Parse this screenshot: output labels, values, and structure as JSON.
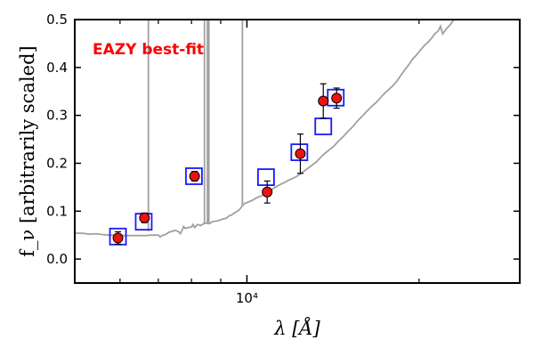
{
  "chart_data": {
    "type": "scatter",
    "title": "",
    "xlabel": "λ [Å]",
    "ylabel": "f_ν [arbitrarily scaled]",
    "xscale": "log",
    "xlim": [
      5000,
      30000
    ],
    "ylim": [
      -0.05,
      0.5
    ],
    "x_major_ticks": [
      {
        "value": 10000,
        "label": "10⁴"
      }
    ],
    "x_minor_ticks": [
      6000,
      7000,
      8000,
      9000,
      20000
    ],
    "y_ticks": [
      {
        "value": 0.0,
        "label": "0.0"
      },
      {
        "value": 0.1,
        "label": "0.1"
      },
      {
        "value": 0.2,
        "label": "0.2"
      },
      {
        "value": 0.3,
        "label": "0.3"
      },
      {
        "value": 0.4,
        "label": "0.4"
      },
      {
        "value": 0.5,
        "label": "0.5"
      }
    ],
    "annotation": {
      "text": "EAZY best-fit",
      "color": "#ff0000"
    },
    "series": [
      {
        "kind": "line",
        "color": "#a0a0a0",
        "points": [
          [
            5000,
            0.054
          ],
          [
            5150,
            0.054
          ],
          [
            5300,
            0.052
          ],
          [
            5450,
            0.053
          ],
          [
            5600,
            0.051
          ],
          [
            5750,
            0.05
          ],
          [
            5900,
            0.05
          ],
          [
            6050,
            0.049
          ],
          [
            6200,
            0.049
          ],
          [
            6350,
            0.049
          ],
          [
            6500,
            0.049
          ],
          [
            6650,
            0.049
          ],
          [
            6800,
            0.05
          ],
          [
            6900,
            0.05
          ],
          [
            7000,
            0.05
          ],
          [
            7050,
            0.046
          ],
          [
            7100,
            0.049
          ],
          [
            7200,
            0.051
          ],
          [
            7300,
            0.056
          ],
          [
            7400,
            0.058
          ],
          [
            7500,
            0.06
          ],
          [
            7600,
            0.057
          ],
          [
            7650,
            0.053
          ],
          [
            7700,
            0.06
          ],
          [
            7750,
            0.068
          ],
          [
            7800,
            0.064
          ],
          [
            7900,
            0.066
          ],
          [
            8000,
            0.067
          ],
          [
            8050,
            0.072
          ],
          [
            8100,
            0.066
          ],
          [
            8150,
            0.069
          ],
          [
            8200,
            0.072
          ],
          [
            8300,
            0.07
          ],
          [
            8400,
            0.074
          ],
          [
            8500,
            0.075
          ],
          [
            8600,
            0.074
          ],
          [
            8700,
            0.078
          ],
          [
            8800,
            0.079
          ],
          [
            8900,
            0.08
          ],
          [
            9000,
            0.082
          ],
          [
            9100,
            0.084
          ],
          [
            9200,
            0.085
          ],
          [
            9300,
            0.09
          ],
          [
            9400,
            0.092
          ],
          [
            9500,
            0.096
          ],
          [
            9600,
            0.099
          ],
          [
            9700,
            0.103
          ],
          [
            9800,
            0.11
          ],
          [
            9900,
            0.116
          ],
          [
            10000,
            0.118
          ],
          [
            10200,
            0.122
          ],
          [
            10400,
            0.128
          ],
          [
            10600,
            0.132
          ],
          [
            10800,
            0.138
          ],
          [
            11000,
            0.143
          ],
          [
            11200,
            0.15
          ],
          [
            11400,
            0.155
          ],
          [
            11600,
            0.159
          ],
          [
            11800,
            0.164
          ],
          [
            12000,
            0.168
          ],
          [
            12200,
            0.172
          ],
          [
            12400,
            0.178
          ],
          [
            12600,
            0.184
          ],
          [
            12800,
            0.19
          ],
          [
            13000,
            0.196
          ],
          [
            13200,
            0.202
          ],
          [
            13400,
            0.21
          ],
          [
            13600,
            0.218
          ],
          [
            13800,
            0.224
          ],
          [
            14000,
            0.23
          ],
          [
            14200,
            0.236
          ],
          [
            14400,
            0.244
          ],
          [
            14600,
            0.251
          ],
          [
            14800,
            0.258
          ],
          [
            15000,
            0.266
          ],
          [
            15300,
            0.276
          ],
          [
            15600,
            0.288
          ],
          [
            15900,
            0.298
          ],
          [
            16200,
            0.308
          ],
          [
            16500,
            0.318
          ],
          [
            16800,
            0.326
          ],
          [
            17100,
            0.336
          ],
          [
            17400,
            0.346
          ],
          [
            17700,
            0.354
          ],
          [
            18000,
            0.362
          ],
          [
            18300,
            0.372
          ],
          [
            18600,
            0.384
          ],
          [
            18900,
            0.396
          ],
          [
            19200,
            0.406
          ],
          [
            19500,
            0.418
          ],
          [
            19800,
            0.426
          ],
          [
            20100,
            0.436
          ],
          [
            20400,
            0.445
          ],
          [
            20700,
            0.452
          ],
          [
            21000,
            0.46
          ],
          [
            21300,
            0.47
          ],
          [
            21600,
            0.476
          ],
          [
            21800,
            0.486
          ],
          [
            22000,
            0.47
          ],
          [
            22300,
            0.48
          ],
          [
            22700,
            0.49
          ],
          [
            23000,
            0.5
          ]
        ]
      },
      {
        "kind": "emission_lines",
        "color": "#a0a0a0",
        "lines": [
          {
            "x": 6725,
            "base": 0.058,
            "top": 0.5
          },
          {
            "x": 8430,
            "base": 0.073,
            "top": 0.5
          },
          {
            "x": 8530,
            "base": 0.075,
            "top": 0.5
          },
          {
            "x": 8580,
            "base": 0.076,
            "top": 0.5
          },
          {
            "x": 9820,
            "base": 0.112,
            "top": 0.5
          }
        ]
      },
      {
        "kind": "squares",
        "color": "#1a1aff",
        "points": [
          [
            5950,
            0.047
          ],
          [
            6600,
            0.078
          ],
          [
            8080,
            0.173
          ],
          [
            10800,
            0.171
          ],
          [
            12350,
            0.223
          ],
          [
            13600,
            0.277
          ],
          [
            14300,
            0.337
          ]
        ]
      },
      {
        "kind": "errorbar_points",
        "color": "#ee1111",
        "points": [
          {
            "x": 5950,
            "y": 0.044,
            "err": 0.013
          },
          {
            "x": 6620,
            "y": 0.086,
            "err": 0.01
          },
          {
            "x": 8100,
            "y": 0.173,
            "err": 0.01
          },
          {
            "x": 10850,
            "y": 0.14,
            "err": 0.023
          },
          {
            "x": 12400,
            "y": 0.22,
            "err": 0.041
          },
          {
            "x": 13600,
            "y": 0.33,
            "err": 0.036
          },
          {
            "x": 14350,
            "y": 0.336,
            "err": 0.021
          }
        ]
      }
    ]
  }
}
